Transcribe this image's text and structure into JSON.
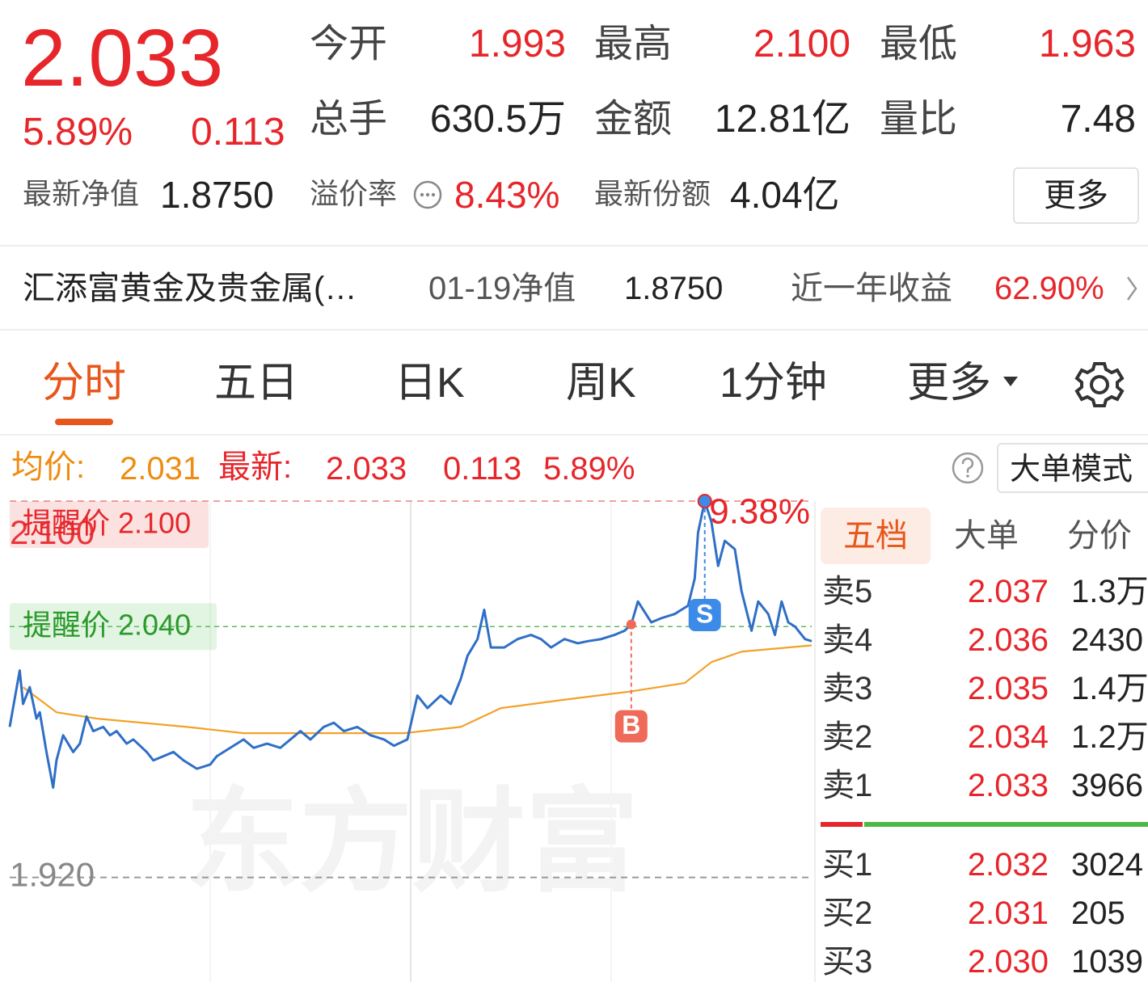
{
  "quote": {
    "price": "2.033",
    "change_pct": "5.89%",
    "change": "0.113"
  },
  "stats": [
    {
      "label": "今开",
      "value": "1.993"
    },
    {
      "label": "最高",
      "value": "2.100"
    },
    {
      "label": "最低",
      "value": "1.963"
    },
    {
      "label": "总手",
      "value": "630.5万"
    },
    {
      "label": "金额",
      "value": "12.81亿"
    },
    {
      "label": "量比",
      "value": "7.48"
    }
  ],
  "nav": {
    "label": "最新净值",
    "value": "1.8750"
  },
  "premium": {
    "label": "溢价率",
    "value": "8.43%"
  },
  "shares": {
    "label": "最新份额",
    "value": "4.04亿"
  },
  "more_button": "更多",
  "fund_bar": {
    "name": "汇添富黄金及贵金属(…",
    "date_label": "01-19净值",
    "nav": "1.8750",
    "return_label": "近一年收益",
    "return": "62.90%"
  },
  "tabs": [
    "分时",
    "五日",
    "日K",
    "周K",
    "1分钟",
    "更多"
  ],
  "chart_header": {
    "avg_label": "均价:",
    "avg": "2.031",
    "latest_label": "最新:",
    "latest": "2.033",
    "change": "0.113",
    "change_pct": "5.89%",
    "mode_button": "大单模式"
  },
  "chart_data": {
    "type": "line",
    "xlim": [
      0,
      240
    ],
    "xticks": [
      60,
      120,
      180
    ],
    "ylim": [
      1.87,
      2.1
    ],
    "yticks": [
      {
        "value": 2.1,
        "label": "2.100"
      },
      {
        "value": 1.92,
        "label": "1.920"
      }
    ],
    "alerts": [
      {
        "label": "提醒价 2.100",
        "value": 2.1
      },
      {
        "label": "提醒价 2.040",
        "value": 2.04
      }
    ],
    "peak_label": "9.38%",
    "markers": [
      {
        "label": "B",
        "x": 186,
        "value": 2.041
      },
      {
        "label": "S",
        "x": 208,
        "value": 2.1
      }
    ],
    "watermark": "东方财富",
    "series": [
      {
        "color": "#2f6fc6",
        "x": [
          0,
          3,
          4,
          6,
          8,
          9,
          11,
          13,
          14,
          16,
          19,
          21,
          23,
          25,
          28,
          30,
          32,
          35,
          37,
          41,
          43,
          46,
          49,
          52,
          56,
          60,
          62,
          66,
          70,
          73,
          77,
          81,
          84,
          87,
          90,
          94,
          97,
          100,
          104,
          108,
          112,
          115,
          119,
          122,
          125,
          129,
          132,
          135,
          137,
          140,
          142,
          144,
          148,
          152,
          156,
          159,
          162,
          166,
          170,
          173,
          177,
          181,
          184,
          186,
          188,
          192,
          195,
          199,
          203,
          205,
          206,
          208,
          210,
          212,
          214,
          217,
          219,
          222,
          224,
          227,
          229,
          231,
          233,
          235,
          238,
          240
        ],
        "values": [
          1.992,
          2.019,
          2.003,
          2.011,
          1.996,
          1.999,
          1.98,
          1.963,
          1.976,
          1.988,
          1.98,
          1.984,
          1.997,
          1.99,
          1.992,
          1.988,
          1.99,
          1.984,
          1.986,
          1.98,
          1.976,
          1.978,
          1.98,
          1.976,
          1.972,
          1.974,
          1.978,
          1.982,
          1.986,
          1.982,
          1.984,
          1.982,
          1.986,
          1.99,
          1.986,
          1.992,
          1.994,
          1.99,
          1.992,
          1.988,
          1.986,
          1.983,
          1.986,
          2.007,
          2.001,
          2.007,
          2.003,
          2.015,
          2.026,
          2.034,
          2.048,
          2.03,
          2.03,
          2.034,
          2.036,
          2.034,
          2.03,
          2.034,
          2.032,
          2.033,
          2.034,
          2.036,
          2.038,
          2.041,
          2.052,
          2.042,
          2.044,
          2.046,
          2.05,
          2.063,
          2.085,
          2.1,
          2.09,
          2.069,
          2.081,
          2.077,
          2.057,
          2.038,
          2.052,
          2.046,
          2.036,
          2.052,
          2.042,
          2.04,
          2.034,
          2.033
        ]
      },
      {
        "color": "#f2a12a",
        "x": [
          4,
          14,
          26,
          53,
          70,
          118,
          135,
          147,
          166,
          186,
          202,
          210,
          219,
          240
        ],
        "values": [
          2.011,
          1.999,
          1.996,
          1.992,
          1.989,
          1.989,
          1.992,
          2.001,
          2.005,
          2.009,
          2.013,
          2.023,
          2.028,
          2.031
        ]
      }
    ]
  },
  "order_book": {
    "tabs": [
      "五档",
      "大单",
      "分价"
    ],
    "asks": [
      {
        "label": "卖5",
        "price": "2.037",
        "volume": "1.3万"
      },
      {
        "label": "卖4",
        "price": "2.036",
        "volume": "2430"
      },
      {
        "label": "卖3",
        "price": "2.035",
        "volume": "1.4万"
      },
      {
        "label": "卖2",
        "price": "2.034",
        "volume": "1.2万"
      },
      {
        "label": "卖1",
        "price": "2.033",
        "volume": "3966"
      }
    ],
    "bids": [
      {
        "label": "买1",
        "price": "2.032",
        "volume": "3024"
      },
      {
        "label": "买2",
        "price": "2.031",
        "volume": "205"
      },
      {
        "label": "买3",
        "price": "2.030",
        "volume": "1039"
      }
    ]
  }
}
